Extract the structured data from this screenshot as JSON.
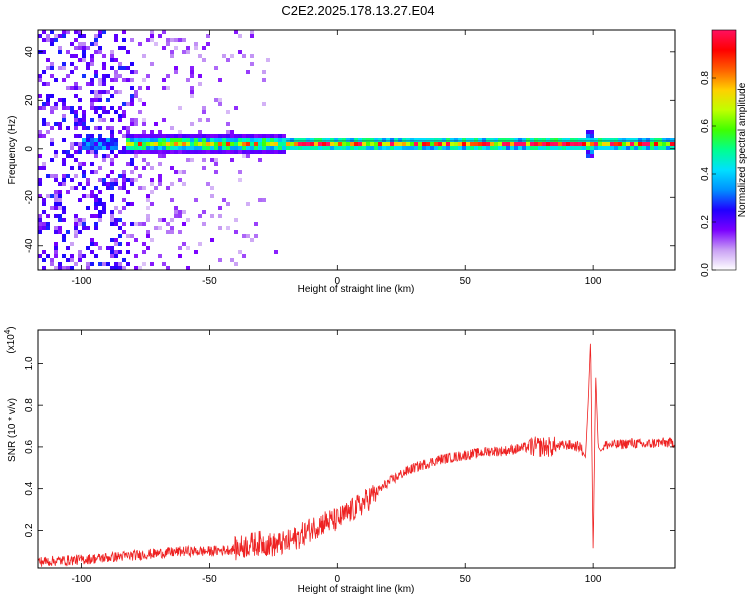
{
  "title": "C2E2.2025.178.13.27.E04",
  "chart_data": [
    {
      "type": "heatmap",
      "xlabel": "Height of straight line (km)",
      "ylabel": "Frequency (Hz)",
      "xlim": [
        -117,
        132
      ],
      "ylim": [
        -50,
        49
      ],
      "xticks": [
        "-100",
        "-50",
        "0",
        "50",
        "100"
      ],
      "xtick_values": [
        -100,
        -50,
        0,
        50,
        100
      ],
      "yticks": [
        "-40",
        "-20",
        "0",
        "20",
        "40"
      ],
      "ytick_values": [
        -40,
        -20,
        0,
        20,
        40
      ],
      "colorbar": {
        "label": "Normalized spectral amplitude",
        "range": [
          0,
          1
        ],
        "ticks": [
          "0.0",
          "0.2",
          "0.4",
          "0.6",
          "0.8"
        ],
        "tick_values": [
          0,
          0.2,
          0.4,
          0.6,
          0.8
        ],
        "colors": [
          "#ffffff",
          "#c9a0f4",
          "#7a00ff",
          "#2000ff",
          "#0090ff",
          "#00e0ff",
          "#00ff90",
          "#40ff00",
          "#c0ff00",
          "#ffd000",
          "#ff6000",
          "#ff0000",
          "#ff1060"
        ]
      },
      "ridge_frequency_hz": 2,
      "noise_region_km": [
        -117,
        -80
      ],
      "sparse_noise_region_km": [
        -80,
        -20
      ]
    },
    {
      "type": "line",
      "xlabel": "Height of straight line (km)",
      "ylabel": "SNR (10 * v/v)",
      "yscale_label_base": "(x10",
      "yscale_label_exp": "4",
      "yscale_label_end": ")",
      "xlim": [
        -117,
        132
      ],
      "ylim": [
        0.02,
        1.16
      ],
      "xticks": [
        "-100",
        "-50",
        "0",
        "50",
        "100"
      ],
      "xtick_values": [
        -100,
        -50,
        0,
        50,
        100
      ],
      "yticks": [
        "0.2",
        "0.4",
        "0.6",
        "0.8",
        "1.0"
      ],
      "ytick_values": [
        0.2,
        0.4,
        0.6,
        0.8,
        1.0
      ],
      "color": "#ee2222",
      "x": [
        -117,
        -100,
        -90,
        -80,
        -70,
        -60,
        -50,
        -40,
        -35,
        -30,
        -25,
        -20,
        -15,
        -10,
        -5,
        0,
        5,
        10,
        15,
        20,
        25,
        30,
        35,
        40,
        45,
        50,
        55,
        60,
        65,
        70,
        75,
        80,
        85,
        90,
        95,
        97,
        98,
        99,
        100,
        101,
        102,
        103,
        105,
        110,
        115,
        120,
        125,
        132
      ],
      "y": [
        0.05,
        0.06,
        0.07,
        0.08,
        0.09,
        0.1,
        0.1,
        0.11,
        0.13,
        0.14,
        0.13,
        0.14,
        0.17,
        0.21,
        0.24,
        0.25,
        0.29,
        0.33,
        0.38,
        0.43,
        0.47,
        0.5,
        0.52,
        0.54,
        0.55,
        0.56,
        0.57,
        0.58,
        0.58,
        0.59,
        0.6,
        0.6,
        0.6,
        0.61,
        0.6,
        0.55,
        0.8,
        1.12,
        0.1,
        0.95,
        0.6,
        0.58,
        0.61,
        0.61,
        0.62,
        0.61,
        0.62,
        0.62
      ]
    }
  ]
}
